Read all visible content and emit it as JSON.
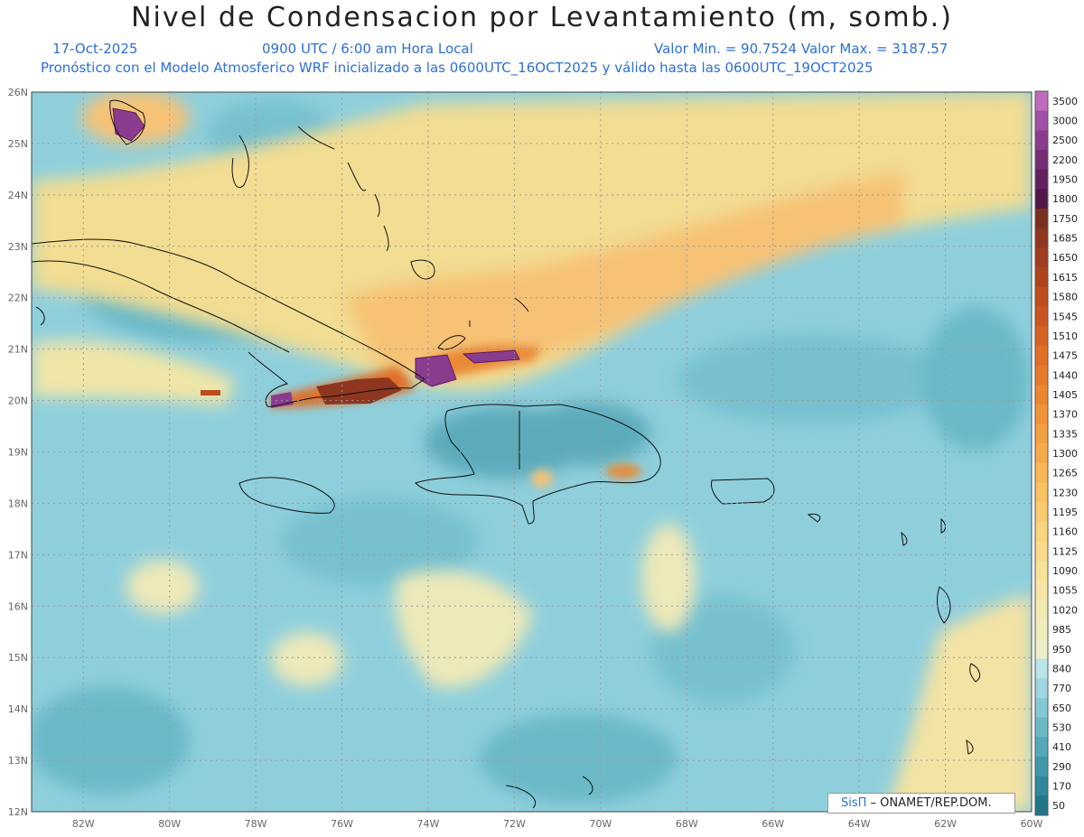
{
  "header": {
    "title": "Nivel de Condensacion por Levantamiento (m, somb.)",
    "date": "17-Oct-2025",
    "time": "0900 UTC / 6:00 am Hora Local",
    "minmax": "Valor Min. = 90.7524   Valor Max. = 3187.57",
    "model": "Pronóstico con el Modelo Atmosferico WRF inicializado a las 0600UTC_16OCT2025 y válido hasta las  0600UTC_19OCT2025"
  },
  "map": {
    "lat_labels": [
      "26N",
      "25N",
      "24N",
      "23N",
      "22N",
      "21N",
      "20N",
      "19N",
      "18N",
      "17N",
      "16N",
      "15N",
      "14N",
      "13N",
      "12N"
    ],
    "lon_labels": [
      "82W",
      "80W",
      "78W",
      "76W",
      "74W",
      "72W",
      "70W",
      "68W",
      "66W",
      "64W",
      "62W",
      "60W"
    ],
    "lat_range": [
      12,
      26
    ],
    "lon_range": [
      -83.2,
      -60
    ]
  },
  "legend": {
    "levels": [
      "3500",
      "3000",
      "2500",
      "2200",
      "1950",
      "1800",
      "1750",
      "1685",
      "1650",
      "1615",
      "1580",
      "1545",
      "1510",
      "1475",
      "1440",
      "1405",
      "1370",
      "1335",
      "1300",
      "1265",
      "1230",
      "1195",
      "1160",
      "1125",
      "1090",
      "1055",
      "1020",
      "985",
      "950",
      "840",
      "770",
      "650",
      "530",
      "410",
      "290",
      "170",
      "50"
    ],
    "colors": [
      "#c06ac0",
      "#a050a8",
      "#8a3c8e",
      "#742c74",
      "#62205e",
      "#521648",
      "#7a2f1e",
      "#8e3620",
      "#a03c1f",
      "#b0441d",
      "#be4c1e",
      "#ca561f",
      "#d56223",
      "#df6e26",
      "#e77a2a",
      "#ec8730",
      "#f09437",
      "#f3a040",
      "#f6ab4a",
      "#f8b756",
      "#f9c262",
      "#f9cc70",
      "#f9d57e",
      "#f8dc8c",
      "#f7e29a",
      "#f5e6a6",
      "#f3eab2",
      "#f0ecbe",
      "#edeec8",
      "#b8e4ea",
      "#9fd6e0",
      "#86c8d4",
      "#6cb8c6",
      "#55a8b8",
      "#4098aa",
      "#2f879a",
      "#21768a"
    ]
  },
  "credit": {
    "sis": "SisΠ",
    "text": " – ONAMET/REP.DOM."
  }
}
